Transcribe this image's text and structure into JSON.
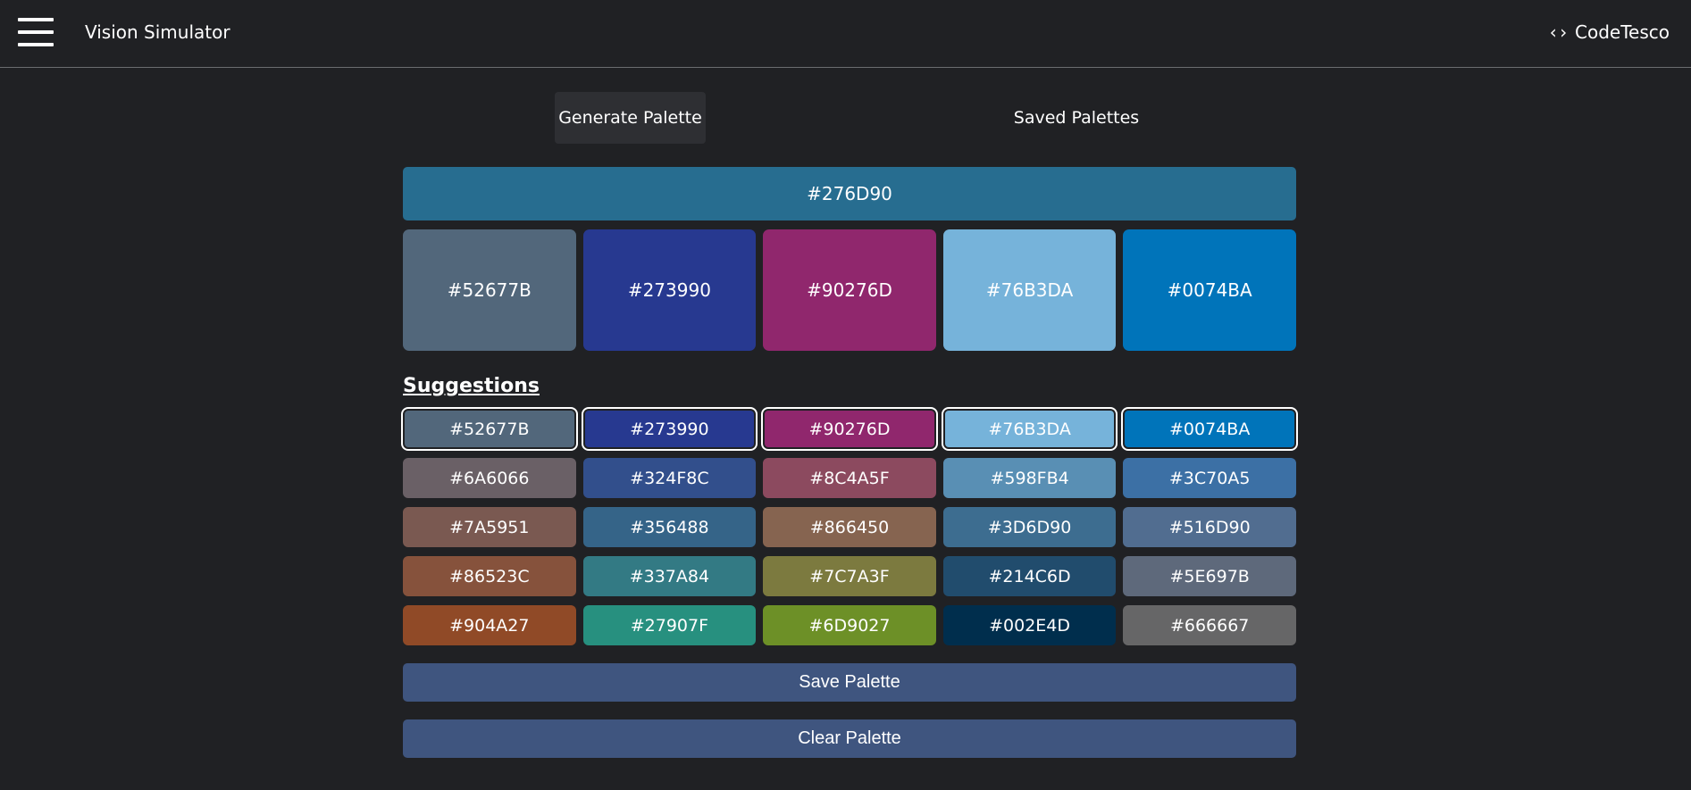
{
  "header": {
    "title": "Vision Simulator",
    "brand": "CodeTesco",
    "brand_icon": "code-brackets-icon"
  },
  "tabs": [
    {
      "label": "Generate Palette",
      "active": true
    },
    {
      "label": "Saved Palettes",
      "active": false
    }
  ],
  "base": {
    "hex": "#276D90",
    "color": "#276D90"
  },
  "palette": [
    {
      "hex": "#52677B",
      "color": "#52677B"
    },
    {
      "hex": "#273990",
      "color": "#273990"
    },
    {
      "hex": "#90276D",
      "color": "#90276D"
    },
    {
      "hex": "#76B3DA",
      "color": "#76B3DA"
    },
    {
      "hex": "#0074BA",
      "color": "#0074BA"
    }
  ],
  "suggestions": {
    "title": "Suggestions",
    "rows": [
      [
        {
          "hex": "#52677B",
          "selected": true
        },
        {
          "hex": "#273990",
          "selected": true
        },
        {
          "hex": "#90276D",
          "selected": true
        },
        {
          "hex": "#76B3DA",
          "selected": true
        },
        {
          "hex": "#0074BA",
          "selected": true
        }
      ],
      [
        {
          "hex": "#6A6066"
        },
        {
          "hex": "#324F8C"
        },
        {
          "hex": "#8C4A5F"
        },
        {
          "hex": "#598FB4"
        },
        {
          "hex": "#3C70A5"
        }
      ],
      [
        {
          "hex": "#7A5951"
        },
        {
          "hex": "#356488"
        },
        {
          "hex": "#866450"
        },
        {
          "hex": "#3D6D90"
        },
        {
          "hex": "#516D90"
        }
      ],
      [
        {
          "hex": "#86523C"
        },
        {
          "hex": "#337A84"
        },
        {
          "hex": "#7C7A3F"
        },
        {
          "hex": "#214C6D"
        },
        {
          "hex": "#5E697B"
        }
      ],
      [
        {
          "hex": "#904A27"
        },
        {
          "hex": "#27907F"
        },
        {
          "hex": "#6D9027"
        },
        {
          "hex": "#002E4D"
        },
        {
          "hex": "#666667"
        }
      ]
    ]
  },
  "actions": {
    "save_label": "Save Palette",
    "clear_label": "Clear Palette"
  }
}
